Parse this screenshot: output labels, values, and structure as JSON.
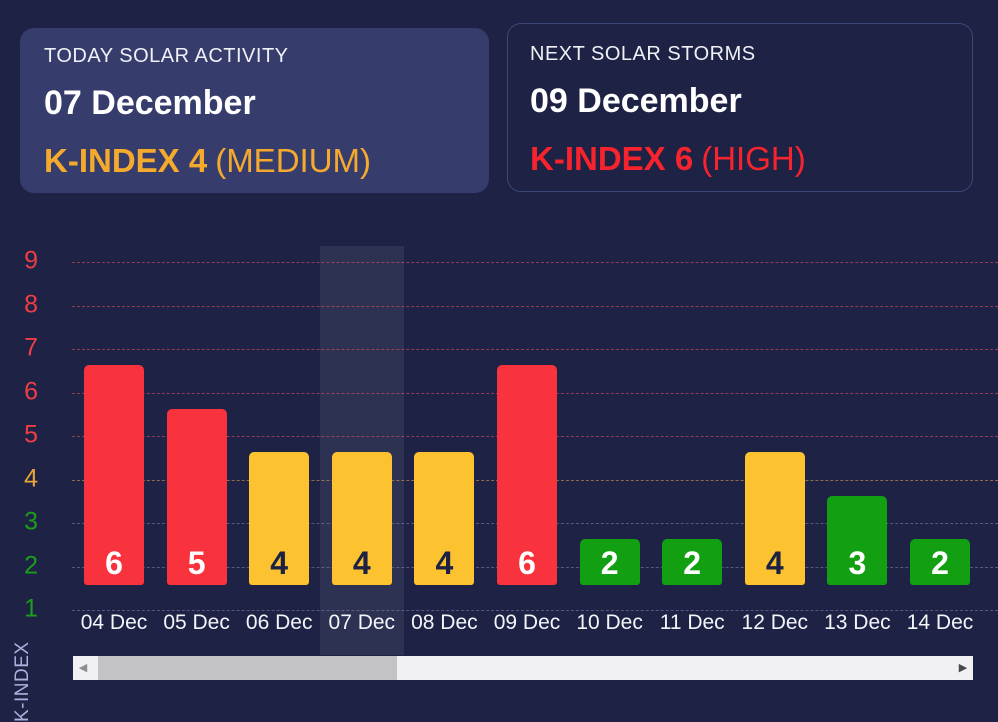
{
  "colors": {
    "page_bg": "#1e2245",
    "card_bg": "#363d6c",
    "card_border": "#3c4878",
    "title_text": "#f0f1f6",
    "white_text": "#ffffff",
    "today_accent": "#f6aa2d",
    "next_accent": "#f7232d",
    "bar_high": "#f8333d",
    "bar_medium": "#fcc230",
    "bar_low": "#12a012",
    "bar_value_light": "#ffffff",
    "bar_value_dark": "#1d2244",
    "tick_high": "#ee3d45",
    "tick_medium": "#e9a53a",
    "tick_low": "#1b9e1b",
    "grid_high": "rgba(233,85,100,0.55)",
    "grid_medium": "rgba(233,170,75,0.55)",
    "grid_low": "rgba(150,158,196,0.45)",
    "highlight_band": "rgba(255,255,255,0.07)",
    "x_label": "#f4f5f9",
    "y_title": "#a9b3de",
    "scroll_track": "#f1f1f3",
    "scroll_thumb": "#c3c3c7",
    "scroll_arrow_left": "#8e8e94",
    "scroll_arrow_right": "#48484e"
  },
  "cards": {
    "today": {
      "title": "TODAY SOLAR ACTIVITY",
      "date": "07 December",
      "k_index": "K-INDEX 4",
      "qualifier": "(MEDIUM)"
    },
    "next": {
      "title": "NEXT SOLAR STORMS",
      "date": "09 December",
      "k_index": "K-INDEX 6",
      "qualifier": "(HIGH)"
    }
  },
  "chart_data": {
    "type": "bar",
    "title": "",
    "xlabel": "",
    "ylabel": "K-INDEX",
    "categories": [
      "04 Dec",
      "05 Dec",
      "06 Dec",
      "07 Dec",
      "08 Dec",
      "09 Dec",
      "10 Dec",
      "11 Dec",
      "12 Dec",
      "13 Dec",
      "14 Dec"
    ],
    "values": [
      6,
      5,
      4,
      4,
      4,
      6,
      2,
      2,
      4,
      3,
      2
    ],
    "highlighted_category": "07 Dec",
    "y_ticks": [
      1,
      2,
      3,
      4,
      5,
      6,
      7,
      8,
      9
    ],
    "ylim": [
      0,
      9
    ],
    "grid": true,
    "legend": false,
    "severity_rules": {
      "high_min": 5,
      "medium_value": 4
    }
  },
  "scrollbar": {
    "left_arrow": "◀",
    "right_arrow": "▶"
  }
}
